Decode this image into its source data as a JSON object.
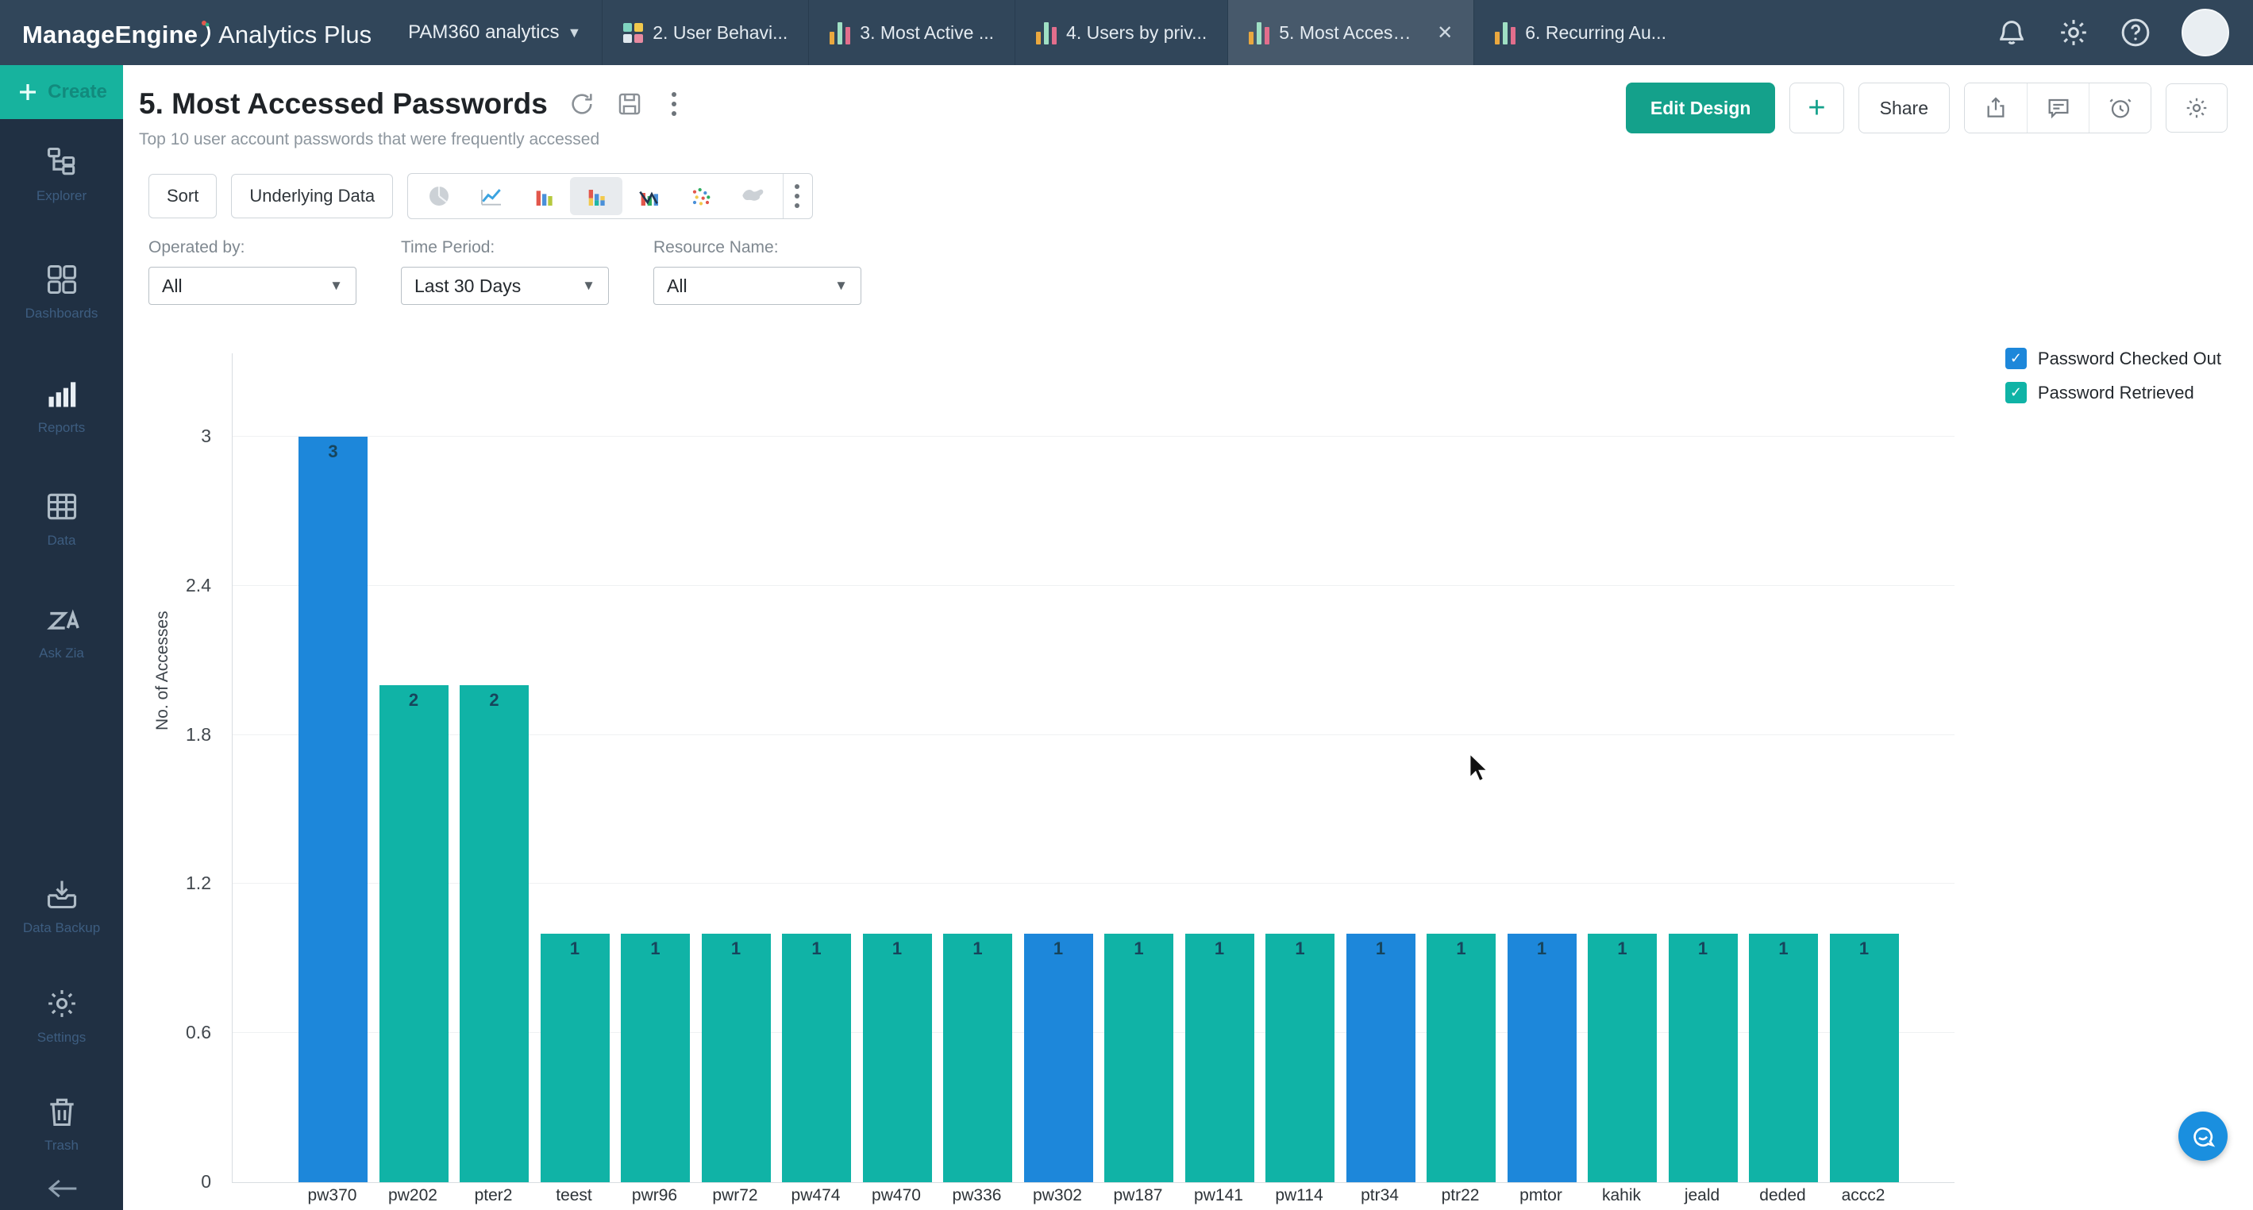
{
  "header": {
    "brand": {
      "name_bold": "ManageEngine",
      "name_light": "Analytics Plus"
    },
    "workspace": {
      "label": "PAM360 analytics"
    },
    "tabs": [
      {
        "label": "2. User Behavi..."
      },
      {
        "label": "3. Most Active ..."
      },
      {
        "label": "4. Users by priv..."
      },
      {
        "label": "5. Most Access...",
        "active": true
      },
      {
        "label": "6. Recurring Au..."
      }
    ]
  },
  "sidebar": {
    "create_label": "Create",
    "items": [
      {
        "label": "Explorer"
      },
      {
        "label": "Dashboards"
      },
      {
        "label": "Reports"
      },
      {
        "label": "Data"
      },
      {
        "label": "Ask Zia"
      }
    ],
    "bottom_items": [
      {
        "label": "Data Backup"
      },
      {
        "label": "Settings"
      },
      {
        "label": "Trash"
      }
    ]
  },
  "view": {
    "title": "5. Most Accessed Passwords",
    "subtitle": "Top 10 user account passwords that were frequently accessed"
  },
  "actions": {
    "edit_design": "Edit Design",
    "add": "+",
    "share": "Share"
  },
  "toolbar": {
    "sort": "Sort",
    "underlying_data": "Underlying Data"
  },
  "filters": [
    {
      "label": "Operated by:",
      "value": "All"
    },
    {
      "label": "Time Period:",
      "value": "Last 30 Days"
    },
    {
      "label": "Resource Name:",
      "value": "All"
    }
  ],
  "chart_data": {
    "type": "bar",
    "title": "5. Most Accessed Passwords",
    "xlabel": "",
    "ylabel": "No. of Accesses",
    "yticks": [
      0,
      0.6,
      1.2,
      1.8,
      2.4,
      3
    ],
    "ylim": [
      0,
      3.15
    ],
    "grid": true,
    "legend_position": "top-right",
    "categories": [
      "pw370",
      "pw202",
      "pter2",
      "teest",
      "pwr96",
      "pwr72",
      "pw474",
      "pw470",
      "pw336",
      "pw302",
      "pw187",
      "pw141",
      "pw114",
      "ptr34",
      "ptr22",
      "pmtor",
      "kahik",
      "jeald",
      "deded",
      "accc2"
    ],
    "series": [
      {
        "name": "Password Checked Out",
        "color": "#1d87da"
      },
      {
        "name": "Password Retrieved",
        "color": "#10b3a6"
      }
    ],
    "bars": [
      {
        "category": "pw370",
        "value": 3,
        "series": "Password Checked Out"
      },
      {
        "category": "pw202",
        "value": 2,
        "series": "Password Retrieved"
      },
      {
        "category": "pter2",
        "value": 2,
        "series": "Password Retrieved"
      },
      {
        "category": "teest",
        "value": 1,
        "series": "Password Retrieved"
      },
      {
        "category": "pwr96",
        "value": 1,
        "series": "Password Retrieved"
      },
      {
        "category": "pwr72",
        "value": 1,
        "series": "Password Retrieved"
      },
      {
        "category": "pw474",
        "value": 1,
        "series": "Password Retrieved"
      },
      {
        "category": "pw470",
        "value": 1,
        "series": "Password Retrieved"
      },
      {
        "category": "pw336",
        "value": 1,
        "series": "Password Retrieved"
      },
      {
        "category": "pw302",
        "value": 1,
        "series": "Password Checked Out"
      },
      {
        "category": "pw187",
        "value": 1,
        "series": "Password Retrieved"
      },
      {
        "category": "pw141",
        "value": 1,
        "series": "Password Retrieved"
      },
      {
        "category": "pw114",
        "value": 1,
        "series": "Password Retrieved"
      },
      {
        "category": "ptr34",
        "value": 1,
        "series": "Password Checked Out"
      },
      {
        "category": "ptr22",
        "value": 1,
        "series": "Password Retrieved"
      },
      {
        "category": "pmtor",
        "value": 1,
        "series": "Password Checked Out"
      },
      {
        "category": "kahik",
        "value": 1,
        "series": "Password Retrieved"
      },
      {
        "category": "jeald",
        "value": 1,
        "series": "Password Retrieved"
      },
      {
        "category": "deded",
        "value": 1,
        "series": "Password Retrieved"
      },
      {
        "category": "accc2",
        "value": 1,
        "series": "Password Retrieved"
      }
    ]
  }
}
